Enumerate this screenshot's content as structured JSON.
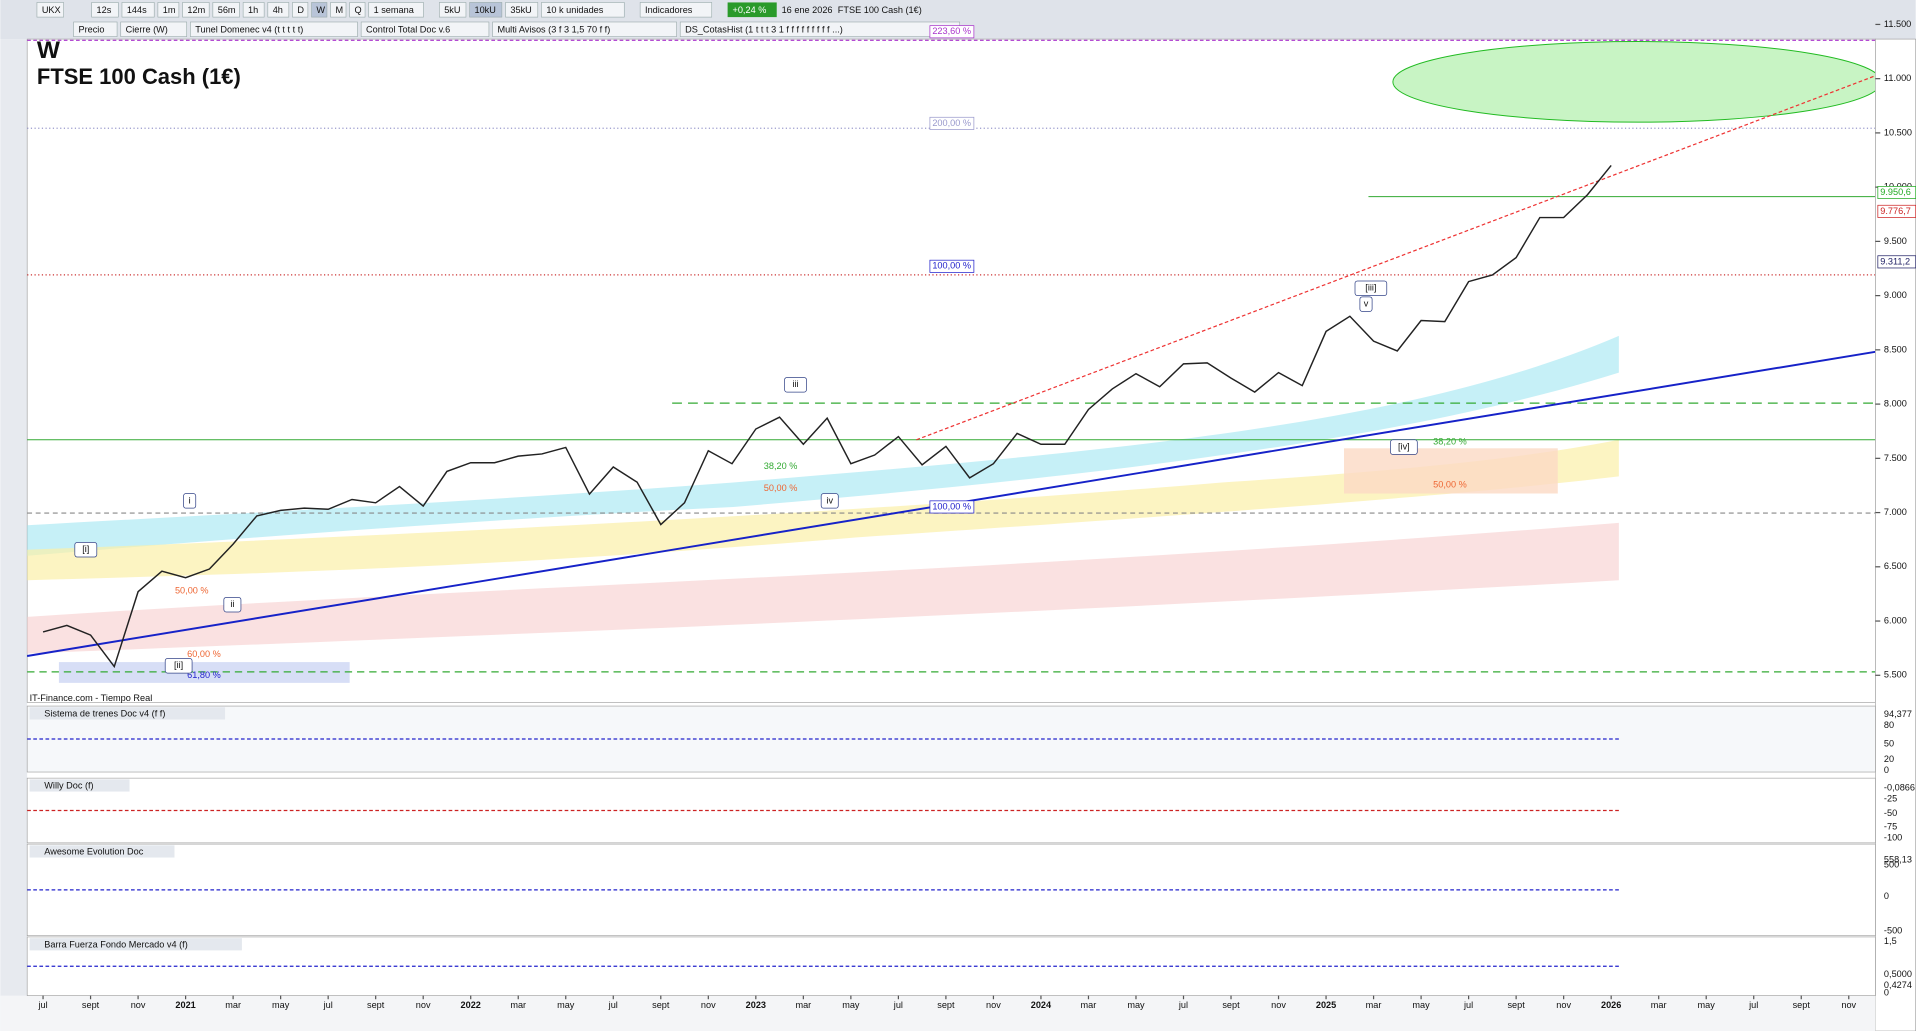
{
  "toolbar": {
    "symbol": "UKX",
    "intervals": [
      "12s",
      "144s",
      "1m",
      "12m",
      "56m",
      "1h",
      "4h",
      "D",
      "W",
      "M",
      "Q"
    ],
    "period": "1 semana",
    "units": [
      "5kU",
      "10kU",
      "35kU"
    ],
    "unit_mode": "10 k unidades",
    "indicators": "Indicadores",
    "change": "+0,24 %",
    "date": "16 ene 2026",
    "instrument": "FTSE 100 Cash (1€)"
  },
  "tabs": [
    "Precio",
    "Cierre (W)",
    "Tunel Domenec v4 (t t t t t)",
    "Control Total Doc v.6",
    "Multi Avisos (3 f 3 1,5 70 f f)",
    "DS_CotasHist (1 t t t 3 1 f f f f f f f f f ...)"
  ],
  "chart": {
    "timeframe": "W",
    "title": "FTSE 100 Cash (1€)",
    "source": "IT-Finance.com - Tiempo Real",
    "yticks": [
      {
        "value": 11500,
        "label": "11.500"
      },
      {
        "value": 11000,
        "label": "11.000"
      },
      {
        "value": 10500,
        "label": "10.500"
      },
      {
        "value": 10000,
        "label": "10.000"
      },
      {
        "value": 9500,
        "label": "9.500"
      },
      {
        "value": 9000,
        "label": "9.000"
      },
      {
        "value": 8500,
        "label": "8.500"
      },
      {
        "value": 8000,
        "label": "8.000"
      },
      {
        "value": 7500,
        "label": "7.500"
      },
      {
        "value": 7000,
        "label": "7.000"
      },
      {
        "value": 6500,
        "label": "6.500"
      },
      {
        "value": 6000,
        "label": "6.000"
      },
      {
        "value": 5500,
        "label": "5.500"
      }
    ],
    "price_labels": [
      {
        "value": 9950.6,
        "label": "9.950,6"
      },
      {
        "value": 9776.7,
        "label": "9.776,7"
      },
      {
        "value": 9311.2,
        "label": "9.311,2"
      }
    ],
    "fib_labels": [
      "223,60 %",
      "200,00 %",
      "100,00 %",
      "100,00 %",
      "38,20 %",
      "50,00 %",
      "38,20 %",
      "50,00 %",
      "50,00 %",
      "60,00 %",
      "61,80 %"
    ],
    "wave_labels": [
      "[i]",
      "i",
      "ii",
      "[ii]",
      "iii",
      "iv",
      "[iii]",
      "v",
      "[iv]"
    ],
    "closes": [
      5900,
      5960,
      5870,
      5580,
      6270,
      6460,
      6400,
      6480,
      6710,
      6970,
      7020,
      7040,
      7030,
      7120,
      7090,
      7240,
      7060,
      7380,
      7460,
      7460,
      7520,
      7540,
      7600,
      7170,
      7420,
      7280,
      6890,
      7090,
      7570,
      7450,
      7770,
      7880,
      7630,
      7870,
      7450,
      7530,
      7700,
      7440,
      7610,
      7320,
      7450,
      7730,
      7630,
      7630,
      7950,
      8140,
      8280,
      8160,
      8370,
      8380,
      8240,
      8110,
      8290,
      8170,
      8670,
      8810,
      8580,
      8490,
      8770,
      8760,
      9130,
      9190,
      9350,
      9720,
      9720,
      9930,
      10200
    ]
  },
  "panels": [
    {
      "title": "Sistema de trenes Doc v4 (f f)",
      "axis": [
        "94,377",
        "80",
        "50",
        "20",
        "0"
      ]
    },
    {
      "title": "Willy Doc (f)",
      "axis": [
        "-0,0866",
        "-25",
        "-50",
        "-75",
        "-100"
      ]
    },
    {
      "title": "Awesome Evolution Doc",
      "axis": [
        "558,13",
        "500",
        "0",
        "-500"
      ]
    },
    {
      "title": "Barra Fuerza Fondo Mercado v4 (f)",
      "axis": [
        "1,5",
        "0,5000",
        "0,4274",
        "0"
      ]
    }
  ],
  "date_axis": [
    "jul",
    "sept",
    "nov",
    "2021",
    "mar",
    "may",
    "jul",
    "sept",
    "nov",
    "2022",
    "mar",
    "may",
    "jul",
    "sept",
    "nov",
    "2023",
    "mar",
    "may",
    "jul",
    "sept",
    "nov",
    "2024",
    "mar",
    "may",
    "jul",
    "sept",
    "nov",
    "2025",
    "mar",
    "may",
    "jul",
    "sept",
    "nov",
    "2026",
    "mar",
    "may",
    "jul",
    "sept",
    "nov"
  ]
}
